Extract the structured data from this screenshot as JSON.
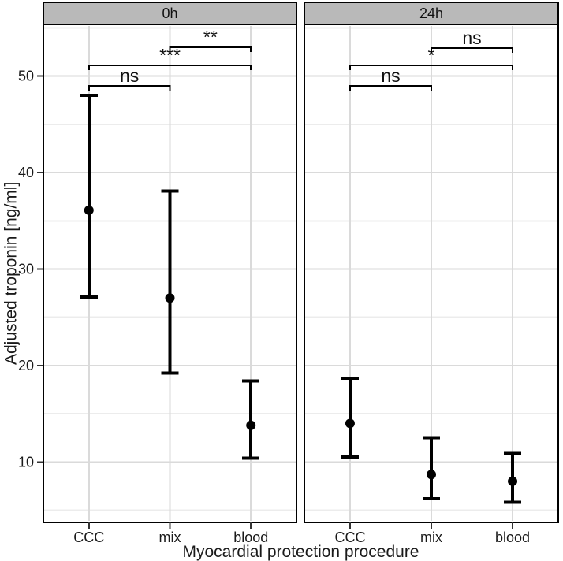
{
  "chart_data": {
    "type": "pointrange",
    "title": "",
    "xlabel": "Myocardial protection procedure",
    "ylabel": "Adjusted troponin [ng/ml]",
    "categories": [
      "CCC",
      "mix",
      "blood"
    ],
    "ylim": [
      3.9,
      55.2
    ],
    "yticks": [
      10,
      20,
      30,
      40,
      50
    ],
    "yminor": [
      5,
      15,
      25,
      35,
      45,
      55
    ],
    "grid": true,
    "legend": "none",
    "facets": [
      {
        "label": "0h",
        "points": [
          {
            "category": "CCC",
            "mean": 36.1,
            "lower": 27.1,
            "upper": 48.0
          },
          {
            "category": "mix",
            "mean": 27.0,
            "lower": 19.2,
            "upper": 38.1
          },
          {
            "category": "blood",
            "mean": 13.8,
            "lower": 10.4,
            "upper": 18.4
          }
        ],
        "significance": [
          {
            "from": "CCC",
            "to": "mix",
            "label": "ns",
            "y": 49.0
          },
          {
            "from": "CCC",
            "to": "blood",
            "label": "***",
            "y": 51.1
          },
          {
            "from": "mix",
            "to": "blood",
            "label": "**",
            "y": 53.0
          }
        ]
      },
      {
        "label": "24h",
        "points": [
          {
            "category": "CCC",
            "mean": 14.0,
            "lower": 10.5,
            "upper": 18.7
          },
          {
            "category": "mix",
            "mean": 8.7,
            "lower": 6.2,
            "upper": 12.5
          },
          {
            "category": "blood",
            "mean": 8.0,
            "lower": 5.8,
            "upper": 10.9
          }
        ],
        "significance": [
          {
            "from": "CCC",
            "to": "mix",
            "label": "ns",
            "y": 49.0
          },
          {
            "from": "CCC",
            "to": "blood",
            "label": "*",
            "y": 51.1
          },
          {
            "from": "mix",
            "to": "blood",
            "label": "ns",
            "y": 52.9
          }
        ]
      }
    ],
    "colors": {
      "strip_bg": "#b9b9b9",
      "panel_border": "#000000",
      "grid_major": "#dadada",
      "grid_minor": "#ececec",
      "data": "#000000",
      "text": "#1a1a1a"
    }
  }
}
